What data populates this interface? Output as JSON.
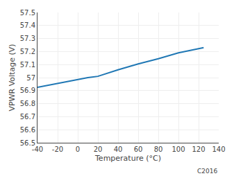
{
  "chart_data": {
    "type": "line",
    "title": "",
    "xlabel": "Temperature (°C)",
    "ylabel": "VPWR Voltage (V)",
    "x": [
      -40,
      -20,
      -10,
      0,
      10,
      20,
      40,
      60,
      80,
      100,
      110,
      125
    ],
    "values": [
      56.925,
      56.955,
      56.97,
      56.985,
      57.0,
      57.01,
      57.06,
      57.105,
      57.145,
      57.19,
      57.205,
      57.23
    ],
    "xlim": [
      -40,
      140
    ],
    "ylim": [
      56.5,
      57.5
    ],
    "xticks": [
      -40,
      -20,
      0,
      20,
      40,
      60,
      80,
      100,
      120,
      140
    ],
    "yticks": [
      56.5,
      56.6,
      56.7,
      56.8,
      56.9,
      57,
      57.1,
      57.2,
      57.3,
      57.4,
      57.5
    ],
    "grid": true,
    "annotations": [
      "C2016"
    ]
  }
}
